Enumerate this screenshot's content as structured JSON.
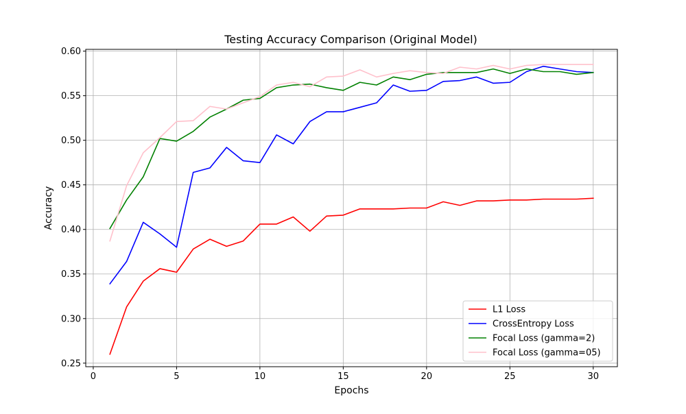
{
  "chart_data": {
    "type": "line",
    "title": "Testing Accuracy Comparison (Original Model)",
    "xlabel": "Epochs",
    "ylabel": "Accuracy",
    "xlim": [
      -0.45,
      31.45
    ],
    "ylim": [
      0.246,
      0.602
    ],
    "xticks": [
      0,
      5,
      10,
      15,
      20,
      25,
      30
    ],
    "yticks": [
      0.25,
      0.3,
      0.35,
      0.4,
      0.45,
      0.5,
      0.55,
      0.6
    ],
    "ytick_labels": [
      "0.25",
      "0.30",
      "0.35",
      "0.40",
      "0.45",
      "0.50",
      "0.55",
      "0.60"
    ],
    "grid": true,
    "legend_position": "lower-right",
    "x": [
      1,
      2,
      3,
      4,
      5,
      6,
      7,
      8,
      9,
      10,
      11,
      12,
      13,
      14,
      15,
      16,
      17,
      18,
      19,
      20,
      21,
      22,
      23,
      24,
      25,
      26,
      27,
      28,
      29,
      30
    ],
    "series": [
      {
        "name": "L1 Loss",
        "color": "#ff0000",
        "values": [
          0.26,
          0.313,
          0.342,
          0.356,
          0.352,
          0.378,
          0.389,
          0.381,
          0.387,
          0.406,
          0.406,
          0.414,
          0.398,
          0.415,
          0.416,
          0.423,
          0.423,
          0.423,
          0.424,
          0.424,
          0.431,
          0.427,
          0.432,
          0.432,
          0.433,
          0.433,
          0.434,
          0.434,
          0.434,
          0.435
        ]
      },
      {
        "name": "CrossEntropy Loss",
        "color": "#0000ff",
        "values": [
          0.339,
          0.364,
          0.408,
          0.395,
          0.38,
          0.464,
          0.469,
          0.492,
          0.477,
          0.475,
          0.506,
          0.496,
          0.521,
          0.532,
          0.532,
          0.537,
          0.542,
          0.562,
          0.555,
          0.556,
          0.566,
          0.567,
          0.571,
          0.564,
          0.565,
          0.577,
          0.583,
          0.58,
          0.577,
          0.576
        ]
      },
      {
        "name": "Focal Loss (gamma=2)",
        "color": "#008000",
        "values": [
          0.401,
          0.433,
          0.459,
          0.502,
          0.499,
          0.51,
          0.526,
          0.535,
          0.545,
          0.547,
          0.559,
          0.562,
          0.563,
          0.559,
          0.556,
          0.565,
          0.562,
          0.571,
          0.568,
          0.574,
          0.576,
          0.576,
          0.576,
          0.58,
          0.575,
          0.58,
          0.577,
          0.577,
          0.574,
          0.576
        ]
      },
      {
        "name": "Focal Loss (gamma=05)",
        "color": "#ffc0cb",
        "values": [
          0.387,
          0.449,
          0.486,
          0.503,
          0.521,
          0.522,
          0.538,
          0.535,
          0.542,
          0.549,
          0.562,
          0.565,
          0.56,
          0.571,
          0.572,
          0.579,
          0.571,
          0.575,
          0.578,
          0.576,
          0.575,
          0.582,
          0.58,
          0.584,
          0.58,
          0.584,
          0.585,
          0.585,
          0.585,
          0.585
        ]
      }
    ]
  }
}
